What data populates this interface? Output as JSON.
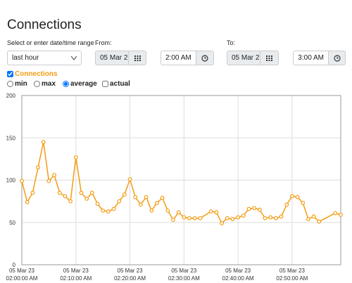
{
  "title": "Connections",
  "range": {
    "label": "Select or enter date/time range",
    "value": "last hour"
  },
  "from": {
    "label": "From:",
    "date": "05 Mar 2",
    "time": "2:00 AM"
  },
  "to": {
    "label": "To:",
    "date": "05 Mar 2",
    "time": "3:00 AM"
  },
  "series_toggle": {
    "label": "Connections",
    "checked": true
  },
  "modes": [
    {
      "label": "min",
      "kind": "radio",
      "checked": false
    },
    {
      "label": "max",
      "kind": "radio",
      "checked": false
    },
    {
      "label": "average",
      "kind": "radio",
      "checked": true
    },
    {
      "label": "actual",
      "kind": "checkbox",
      "checked": false
    }
  ],
  "chart_data": {
    "type": "line",
    "x": [
      "02:00",
      "02:01",
      "02:02",
      "02:03",
      "02:04",
      "02:05",
      "02:06",
      "02:07",
      "02:08",
      "02:09",
      "02:10",
      "02:11",
      "02:12",
      "02:13",
      "02:14",
      "02:15",
      "02:16",
      "02:17",
      "02:18",
      "02:19",
      "02:20",
      "02:21",
      "02:22",
      "02:23",
      "02:24",
      "02:25",
      "02:26",
      "02:27",
      "02:28",
      "02:29",
      "02:30",
      "02:31",
      "02:32",
      "02:33",
      "02:35",
      "02:36",
      "02:37",
      "02:38",
      "02:39",
      "02:40",
      "02:41",
      "02:42",
      "02:43",
      "02:44",
      "02:45",
      "02:46",
      "02:47",
      "02:48",
      "02:49",
      "02:50",
      "02:51",
      "02:52",
      "02:53",
      "02:54",
      "02:55",
      "02:58",
      "02:59"
    ],
    "series": [
      {
        "name": "Connections",
        "color": "#f39c12",
        "values": [
          99,
          74,
          85,
          115,
          145,
          99,
          106,
          85,
          81,
          75,
          127,
          85,
          78,
          85,
          72,
          64,
          63,
          66,
          75,
          83,
          101,
          80,
          71,
          80,
          64,
          73,
          79,
          64,
          53,
          62,
          56,
          55,
          55,
          55,
          63,
          62,
          49,
          55,
          54,
          56,
          58,
          66,
          67,
          65,
          55,
          56,
          55,
          57,
          71,
          81,
          80,
          73,
          54,
          57,
          51,
          61,
          59
        ]
      }
    ],
    "xlim": [
      "02:00",
      "02:59"
    ],
    "xticks": [
      {
        "value": "02:00",
        "label": [
          "05 Mar 23",
          "02:00:00 AM"
        ]
      },
      {
        "value": "02:10",
        "label": [
          "05 Mar 23",
          "02:10:00 AM"
        ]
      },
      {
        "value": "02:20",
        "label": [
          "05 Mar 23",
          "02:20:00 AM"
        ]
      },
      {
        "value": "02:30",
        "label": [
          "05 Mar 23",
          "02:30:00 AM"
        ]
      },
      {
        "value": "02:40",
        "label": [
          "05 Mar 23",
          "02:40:00 AM"
        ]
      },
      {
        "value": "02:50",
        "label": [
          "05 Mar 23",
          "02:50:00 AM"
        ]
      }
    ],
    "ylim": [
      0,
      200
    ],
    "yticks": [
      0,
      50,
      100,
      150,
      200
    ],
    "grid": true
  }
}
